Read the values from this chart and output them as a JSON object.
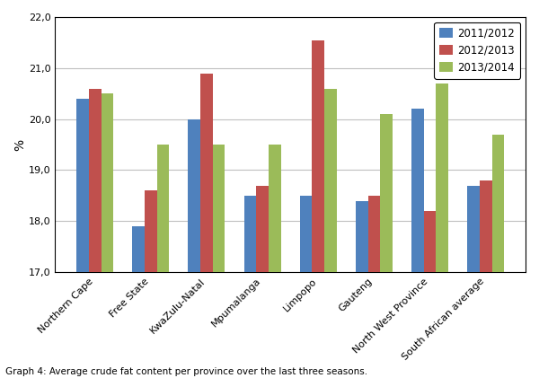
{
  "categories": [
    "Northern Cape",
    "Free State",
    "KwaZulu-Natal",
    "Mpumalanga",
    "Limpopo",
    "Gauteng",
    "North West Province",
    "South African average"
  ],
  "series": {
    "2011/2012": [
      20.4,
      17.9,
      20.0,
      18.5,
      18.5,
      18.4,
      20.2,
      18.7
    ],
    "2012/2013": [
      20.6,
      18.6,
      20.9,
      18.7,
      21.55,
      18.5,
      18.2,
      18.8
    ],
    "2013/2014": [
      20.5,
      19.5,
      19.5,
      19.5,
      20.6,
      20.1,
      20.7,
      19.7
    ]
  },
  "colors": {
    "2011/2012": "#4F81BD",
    "2012/2013": "#C0504D",
    "2013/2014": "#9BBB59"
  },
  "ylabel": "%",
  "ylim": [
    17.0,
    22.0
  ],
  "yticks": [
    17.0,
    18.0,
    19.0,
    20.0,
    21.0,
    22.0
  ],
  "caption": "Graph 4: Average crude fat content per province over the last three seasons.",
  "legend_labels": [
    "2011/2012",
    "2012/2013",
    "2013/2014"
  ],
  "bar_width": 0.22
}
